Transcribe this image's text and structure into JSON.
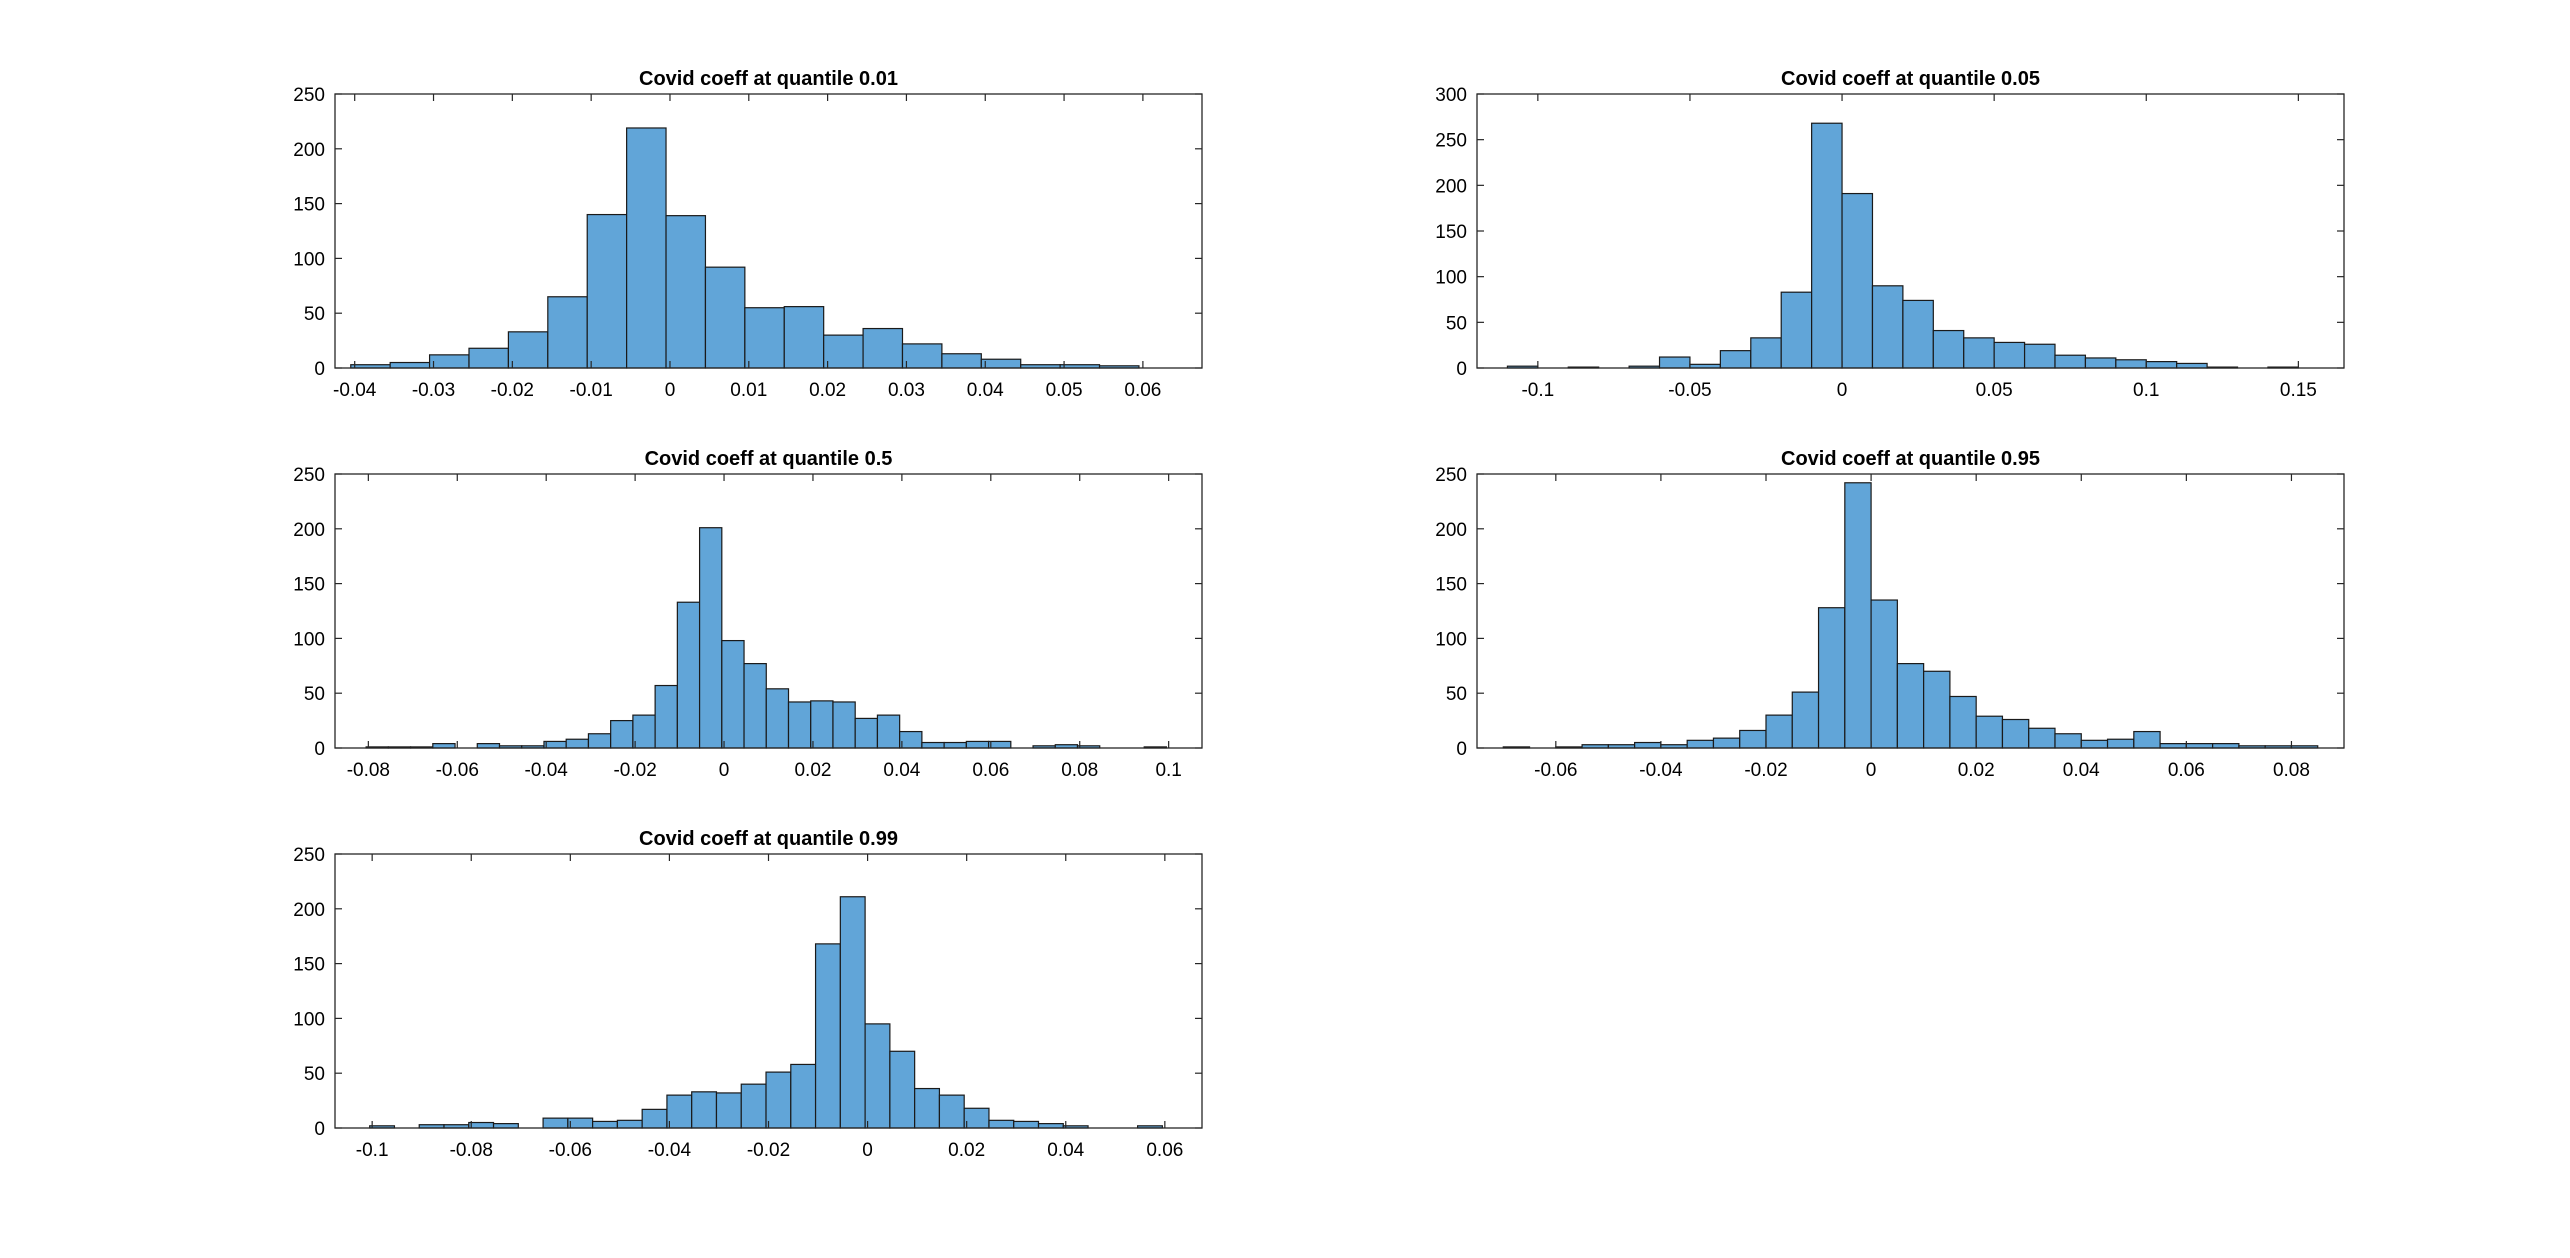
{
  "colors": {
    "bar_fill": "#61a5d8",
    "bar_edge": "#1a1a1a",
    "axis": "#262626",
    "background": "#ffffff"
  },
  "chart_data": [
    {
      "type": "bar",
      "title": "Covid coeff at quantile 0.01",
      "xlabel": "",
      "ylabel": "",
      "xlim": [
        -0.0425,
        0.0675
      ],
      "ylim": [
        0,
        250
      ],
      "xticks": [
        -0.04,
        -0.03,
        -0.02,
        -0.01,
        0,
        0.01,
        0.02,
        0.03,
        0.04,
        0.05,
        0.06
      ],
      "xtick_labels": [
        "-0.04",
        "-0.03",
        "-0.02",
        "-0.01",
        "0",
        "0.01",
        "0.02",
        "0.03",
        "0.04",
        "0.05",
        "0.06"
      ],
      "yticks": [
        0,
        50,
        100,
        150,
        200,
        250
      ],
      "ytick_labels": [
        "0",
        "50",
        "100",
        "150",
        "200",
        "250"
      ],
      "bin_edges": [
        -0.0405,
        -0.0355,
        -0.0305,
        -0.0255,
        -0.0205,
        -0.0155,
        -0.0105,
        -0.0055,
        -0.0005,
        0.0045,
        0.0095,
        0.0145,
        0.0195,
        0.0245,
        0.0295,
        0.0345,
        0.0395,
        0.0445,
        0.0495,
        0.0545,
        0.0595
      ],
      "counts": [
        3,
        5,
        12,
        18,
        33,
        65,
        140,
        219,
        139,
        92,
        55,
        56,
        30,
        36,
        22,
        13,
        8,
        3,
        3,
        2
      ],
      "grid": false,
      "legend": "none"
    },
    {
      "type": "bar",
      "title": "Covid coeff at quantile 0.05",
      "xlabel": "",
      "ylabel": "",
      "xlim": [
        -0.12,
        0.165
      ],
      "ylim": [
        0,
        300
      ],
      "xticks": [
        -0.1,
        -0.05,
        0,
        0.05,
        0.1,
        0.15
      ],
      "xtick_labels": [
        "-0.1",
        "-0.05",
        "0",
        "0.05",
        "0.1",
        "0.15"
      ],
      "yticks": [
        0,
        50,
        100,
        150,
        200,
        250,
        300
      ],
      "ytick_labels": [
        "0",
        "50",
        "100",
        "150",
        "200",
        "250",
        "300"
      ],
      "bin_edges": [
        -0.11,
        -0.1,
        -0.09,
        -0.08,
        -0.07,
        -0.06,
        -0.05,
        -0.04,
        -0.03,
        -0.02,
        -0.01,
        0,
        0.01,
        0.02,
        0.03,
        0.04,
        0.05,
        0.06,
        0.07,
        0.08,
        0.09,
        0.1,
        0.11,
        0.12,
        0.13,
        0.14,
        0.15
      ],
      "counts": [
        2,
        0,
        1,
        0,
        2,
        12,
        4,
        19,
        33,
        83,
        268,
        191,
        90,
        74,
        41,
        33,
        28,
        26,
        14,
        11,
        9,
        7,
        5,
        1,
        0,
        1
      ],
      "grid": false,
      "legend": "none"
    },
    {
      "type": "bar",
      "title": "Covid coeff at quantile 0.5",
      "xlabel": "",
      "ylabel": "",
      "xlim": [
        -0.0875,
        0.1075
      ],
      "ylim": [
        0,
        250
      ],
      "xticks": [
        -0.08,
        -0.06,
        -0.04,
        -0.02,
        0,
        0.02,
        0.04,
        0.06,
        0.08,
        0.1
      ],
      "xtick_labels": [
        "-0.08",
        "-0.06",
        "-0.04",
        "-0.02",
        "0",
        "0.02",
        "0.04",
        "0.06",
        "0.08",
        "0.1"
      ],
      "yticks": [
        0,
        50,
        100,
        150,
        200,
        250
      ],
      "ytick_labels": [
        "0",
        "50",
        "100",
        "150",
        "200",
        "250"
      ],
      "bin_edges": [
        -0.0805,
        -0.0755,
        -0.0705,
        -0.0655,
        -0.0605,
        -0.0555,
        -0.0505,
        -0.0455,
        -0.0405,
        -0.0355,
        -0.0305,
        -0.0255,
        -0.0205,
        -0.0155,
        -0.0105,
        -0.0055,
        -0.0005,
        0.0045,
        0.0095,
        0.0145,
        0.0195,
        0.0245,
        0.0295,
        0.0345,
        0.0395,
        0.0445,
        0.0495,
        0.0545,
        0.0595,
        0.0645,
        0.0695,
        0.0745,
        0.0795,
        0.0845,
        0.0895,
        0.0945,
        0.0995
      ],
      "counts": [
        1,
        1,
        1,
        4,
        0,
        4,
        2,
        2,
        6,
        8,
        13,
        25,
        30,
        57,
        133,
        201,
        98,
        77,
        54,
        42,
        43,
        42,
        27,
        30,
        15,
        5,
        5,
        6,
        6,
        0,
        2,
        3,
        2,
        0,
        0,
        1
      ],
      "grid": false,
      "legend": "none"
    },
    {
      "type": "bar",
      "title": "Covid coeff at quantile 0.95",
      "xlabel": "",
      "ylabel": "",
      "xlim": [
        -0.075,
        0.09
      ],
      "ylim": [
        0,
        250
      ],
      "xticks": [
        -0.06,
        -0.04,
        -0.02,
        0,
        0.02,
        0.04,
        0.06,
        0.08
      ],
      "xtick_labels": [
        "-0.06",
        "-0.04",
        "-0.02",
        "0",
        "0.02",
        "0.04",
        "0.06",
        "0.08"
      ],
      "yticks": [
        0,
        50,
        100,
        150,
        200,
        250
      ],
      "ytick_labels": [
        "0",
        "50",
        "100",
        "150",
        "200",
        "250"
      ],
      "bin_edges": [
        -0.07,
        -0.065,
        -0.06,
        -0.055,
        -0.05,
        -0.045,
        -0.04,
        -0.035,
        -0.03,
        -0.025,
        -0.02,
        -0.015,
        -0.01,
        -0.005,
        0,
        0.005,
        0.01,
        0.015,
        0.02,
        0.025,
        0.03,
        0.035,
        0.04,
        0.045,
        0.05,
        0.055,
        0.06,
        0.065,
        0.07,
        0.075,
        0.08,
        0.085
      ],
      "counts": [
        1,
        0,
        1,
        3,
        3,
        5,
        3,
        7,
        9,
        16,
        30,
        51,
        128,
        242,
        135,
        77,
        70,
        47,
        29,
        26,
        18,
        13,
        7,
        8,
        15,
        4,
        4,
        4,
        2,
        2,
        2
      ],
      "grid": false,
      "legend": "none"
    },
    {
      "type": "bar",
      "title": "Covid coeff at quantile 0.99",
      "xlabel": "",
      "ylabel": "",
      "xlim": [
        -0.1075,
        0.0675
      ],
      "ylim": [
        0,
        250
      ],
      "xticks": [
        -0.1,
        -0.08,
        -0.06,
        -0.04,
        -0.02,
        0,
        0.02,
        0.04,
        0.06
      ],
      "xtick_labels": [
        "-0.1",
        "-0.08",
        "-0.06",
        "-0.04",
        "-0.02",
        "0",
        "0.02",
        "0.04",
        "0.06"
      ],
      "yticks": [
        0,
        50,
        100,
        150,
        200,
        250
      ],
      "ytick_labels": [
        "0",
        "50",
        "100",
        "150",
        "200",
        "250"
      ],
      "bin_edges": [
        -0.1005,
        -0.0955,
        -0.0905,
        -0.0855,
        -0.0805,
        -0.0755,
        -0.0705,
        -0.0655,
        -0.0605,
        -0.0555,
        -0.0505,
        -0.0455,
        -0.0405,
        -0.0355,
        -0.0305,
        -0.0255,
        -0.0205,
        -0.0155,
        -0.0105,
        -0.0055,
        -0.0005,
        0.0045,
        0.0095,
        0.0145,
        0.0195,
        0.0245,
        0.0295,
        0.0345,
        0.0395,
        0.0445,
        0.0495,
        0.0545,
        0.0595
      ],
      "counts": [
        2,
        0,
        3,
        3,
        5,
        4,
        0,
        9,
        9,
        6,
        7,
        17,
        30,
        33,
        32,
        40,
        51,
        58,
        168,
        211,
        95,
        70,
        36,
        30,
        18,
        7,
        6,
        4,
        2,
        0,
        0,
        2
      ],
      "grid": false,
      "legend": "none"
    }
  ]
}
